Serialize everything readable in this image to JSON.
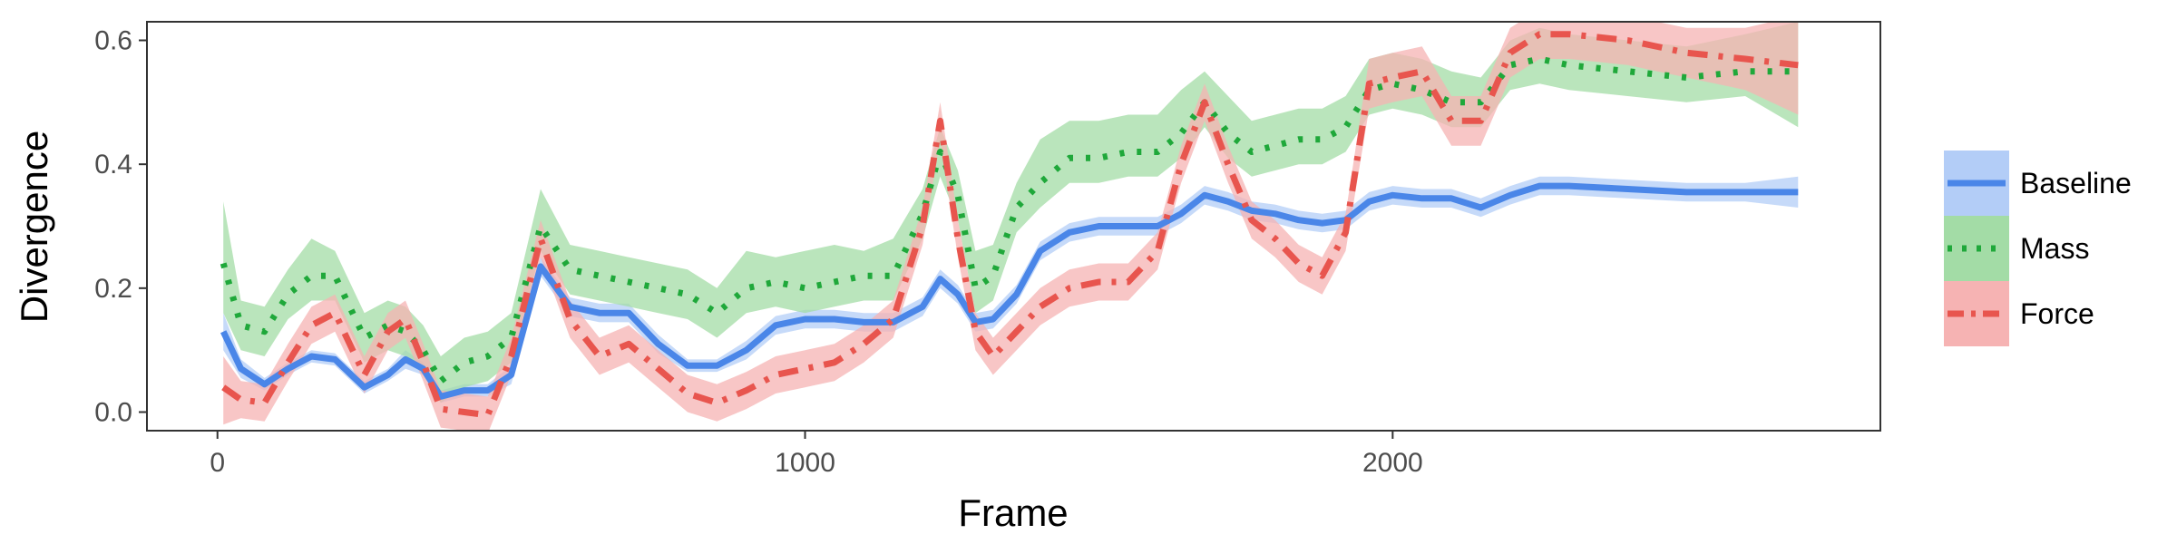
{
  "chart_data": {
    "type": "line",
    "title": "",
    "xlabel": "Frame",
    "ylabel": "Divergence",
    "xlim": [
      -120,
      2830
    ],
    "ylim": [
      -0.03,
      0.63
    ],
    "xticks": [
      0,
      1000,
      2000
    ],
    "xtick_labels": [
      "0",
      "1000",
      "2000"
    ],
    "yticks": [
      0.0,
      0.2,
      0.4,
      0.6
    ],
    "ytick_labels": [
      "0.0",
      "0.2",
      "0.4",
      "0.6"
    ],
    "grid": false,
    "legend_position": "right",
    "x": [
      10,
      40,
      80,
      120,
      160,
      200,
      250,
      290,
      320,
      350,
      380,
      420,
      460,
      500,
      550,
      600,
      650,
      700,
      750,
      800,
      850,
      900,
      950,
      1000,
      1050,
      1100,
      1150,
      1200,
      1230,
      1260,
      1290,
      1320,
      1360,
      1400,
      1450,
      1500,
      1550,
      1600,
      1640,
      1680,
      1720,
      1760,
      1800,
      1840,
      1880,
      1920,
      1960,
      2000,
      2050,
      2100,
      2150,
      2200,
      2250,
      2300,
      2400,
      2500,
      2600,
      2690
    ],
    "series": [
      {
        "name": "Baseline",
        "color": "#4A86E8",
        "band_color": "#B3CDF7",
        "linestyle": "solid",
        "values": [
          0.13,
          0.07,
          0.045,
          0.07,
          0.09,
          0.085,
          0.04,
          0.06,
          0.085,
          0.07,
          0.025,
          0.035,
          0.035,
          0.06,
          0.235,
          0.17,
          0.16,
          0.16,
          0.11,
          0.075,
          0.075,
          0.1,
          0.14,
          0.15,
          0.15,
          0.145,
          0.145,
          0.17,
          0.215,
          0.19,
          0.145,
          0.15,
          0.19,
          0.26,
          0.29,
          0.3,
          0.3,
          0.3,
          0.32,
          0.35,
          0.34,
          0.325,
          0.32,
          0.31,
          0.305,
          0.31,
          0.34,
          0.35,
          0.345,
          0.345,
          0.33,
          0.35,
          0.365,
          0.365,
          0.36,
          0.355,
          0.355,
          0.355
        ],
        "lower": [
          0.1,
          0.055,
          0.035,
          0.06,
          0.08,
          0.075,
          0.03,
          0.05,
          0.07,
          0.06,
          0.015,
          0.025,
          0.025,
          0.045,
          0.22,
          0.155,
          0.145,
          0.145,
          0.095,
          0.065,
          0.065,
          0.085,
          0.125,
          0.135,
          0.135,
          0.13,
          0.13,
          0.155,
          0.2,
          0.175,
          0.13,
          0.135,
          0.175,
          0.245,
          0.275,
          0.285,
          0.285,
          0.285,
          0.305,
          0.335,
          0.325,
          0.31,
          0.305,
          0.295,
          0.29,
          0.295,
          0.325,
          0.335,
          0.33,
          0.33,
          0.315,
          0.335,
          0.35,
          0.35,
          0.345,
          0.34,
          0.34,
          0.33
        ],
        "upper": [
          0.16,
          0.085,
          0.055,
          0.08,
          0.1,
          0.095,
          0.05,
          0.07,
          0.1,
          0.08,
          0.035,
          0.045,
          0.045,
          0.075,
          0.25,
          0.185,
          0.175,
          0.175,
          0.125,
          0.085,
          0.085,
          0.115,
          0.155,
          0.165,
          0.165,
          0.16,
          0.16,
          0.185,
          0.23,
          0.205,
          0.16,
          0.165,
          0.205,
          0.275,
          0.305,
          0.315,
          0.315,
          0.315,
          0.335,
          0.365,
          0.355,
          0.34,
          0.335,
          0.325,
          0.32,
          0.325,
          0.355,
          0.365,
          0.36,
          0.36,
          0.345,
          0.365,
          0.38,
          0.38,
          0.375,
          0.37,
          0.37,
          0.38
        ]
      },
      {
        "name": "Mass",
        "color": "#1FA83A",
        "band_color": "#A3DCA6",
        "linestyle": "dotted",
        "values": [
          0.24,
          0.14,
          0.13,
          0.19,
          0.22,
          0.22,
          0.12,
          0.14,
          0.13,
          0.1,
          0.05,
          0.08,
          0.09,
          0.12,
          0.3,
          0.23,
          0.22,
          0.21,
          0.2,
          0.19,
          0.16,
          0.2,
          0.21,
          0.2,
          0.21,
          0.22,
          0.22,
          0.32,
          0.42,
          0.35,
          0.2,
          0.22,
          0.33,
          0.37,
          0.41,
          0.41,
          0.42,
          0.42,
          0.45,
          0.5,
          0.45,
          0.42,
          0.43,
          0.44,
          0.44,
          0.46,
          0.52,
          0.53,
          0.52,
          0.5,
          0.5,
          0.56,
          0.57,
          0.56,
          0.55,
          0.54,
          0.55,
          0.55
        ],
        "lower": [
          0.16,
          0.1,
          0.09,
          0.15,
          0.18,
          0.18,
          0.08,
          0.1,
          0.09,
          0.06,
          0.015,
          0.04,
          0.05,
          0.08,
          0.26,
          0.19,
          0.18,
          0.17,
          0.16,
          0.15,
          0.12,
          0.16,
          0.17,
          0.16,
          0.17,
          0.18,
          0.18,
          0.28,
          0.38,
          0.31,
          0.16,
          0.18,
          0.29,
          0.33,
          0.37,
          0.37,
          0.38,
          0.38,
          0.41,
          0.46,
          0.41,
          0.38,
          0.39,
          0.4,
          0.4,
          0.42,
          0.48,
          0.49,
          0.48,
          0.46,
          0.46,
          0.52,
          0.53,
          0.52,
          0.51,
          0.5,
          0.51,
          0.46
        ],
        "upper": [
          0.34,
          0.18,
          0.17,
          0.23,
          0.28,
          0.26,
          0.16,
          0.18,
          0.17,
          0.14,
          0.09,
          0.12,
          0.13,
          0.16,
          0.36,
          0.27,
          0.26,
          0.25,
          0.24,
          0.23,
          0.2,
          0.26,
          0.25,
          0.26,
          0.27,
          0.26,
          0.28,
          0.36,
          0.46,
          0.39,
          0.26,
          0.27,
          0.37,
          0.44,
          0.47,
          0.47,
          0.48,
          0.48,
          0.52,
          0.55,
          0.51,
          0.47,
          0.48,
          0.49,
          0.49,
          0.51,
          0.57,
          0.58,
          0.57,
          0.55,
          0.54,
          0.6,
          0.62,
          0.61,
          0.6,
          0.59,
          0.61,
          0.63
        ]
      },
      {
        "name": "Force",
        "color": "#E8554E",
        "band_color": "#F6B3B3",
        "linestyle": "dashdot",
        "values": [
          0.04,
          0.02,
          0.015,
          0.08,
          0.14,
          0.16,
          0.06,
          0.13,
          0.15,
          0.08,
          0.005,
          0.0,
          -0.005,
          0.09,
          0.28,
          0.15,
          0.09,
          0.11,
          0.07,
          0.03,
          0.015,
          0.035,
          0.06,
          0.07,
          0.08,
          0.11,
          0.15,
          0.3,
          0.47,
          0.28,
          0.13,
          0.09,
          0.13,
          0.17,
          0.2,
          0.21,
          0.21,
          0.26,
          0.4,
          0.5,
          0.4,
          0.31,
          0.28,
          0.24,
          0.22,
          0.29,
          0.53,
          0.54,
          0.55,
          0.47,
          0.47,
          0.58,
          0.61,
          0.61,
          0.6,
          0.58,
          0.57,
          0.56
        ],
        "lower": [
          -0.02,
          -0.01,
          -0.015,
          0.05,
          0.11,
          0.13,
          0.03,
          0.1,
          0.12,
          0.05,
          -0.025,
          -0.03,
          -0.035,
          0.06,
          0.25,
          0.12,
          0.06,
          0.08,
          0.04,
          0.0,
          -0.015,
          0.005,
          0.03,
          0.04,
          0.05,
          0.08,
          0.12,
          0.27,
          0.44,
          0.25,
          0.1,
          0.06,
          0.1,
          0.14,
          0.17,
          0.18,
          0.18,
          0.23,
          0.37,
          0.47,
          0.37,
          0.28,
          0.25,
          0.21,
          0.19,
          0.26,
          0.49,
          0.5,
          0.51,
          0.43,
          0.43,
          0.54,
          0.57,
          0.57,
          0.56,
          0.54,
          0.52,
          0.48
        ],
        "upper": [
          0.09,
          0.05,
          0.045,
          0.11,
          0.17,
          0.19,
          0.09,
          0.16,
          0.18,
          0.11,
          0.035,
          0.03,
          0.025,
          0.12,
          0.31,
          0.18,
          0.12,
          0.14,
          0.1,
          0.06,
          0.045,
          0.065,
          0.09,
          0.1,
          0.11,
          0.14,
          0.18,
          0.33,
          0.5,
          0.31,
          0.16,
          0.12,
          0.16,
          0.2,
          0.23,
          0.24,
          0.24,
          0.29,
          0.43,
          0.53,
          0.43,
          0.34,
          0.31,
          0.27,
          0.25,
          0.32,
          0.57,
          0.58,
          0.59,
          0.51,
          0.51,
          0.62,
          0.65,
          0.65,
          0.64,
          0.62,
          0.62,
          0.64
        ]
      }
    ]
  }
}
